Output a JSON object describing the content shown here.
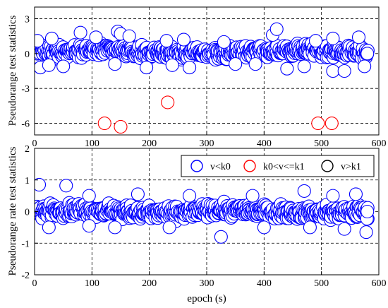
{
  "chart_data": [
    {
      "type": "scatter",
      "ylabel": "Pseudorange test statistics",
      "xlabel": "",
      "xlim": [
        0,
        600
      ],
      "ylim": [
        -7,
        4
      ],
      "xticks": [
        "0",
        "100",
        "200",
        "300",
        "400",
        "500",
        "600"
      ],
      "yticks": [
        "3",
        "0",
        "-3",
        "-6"
      ],
      "ytick_values": [
        3,
        0,
        -3,
        -6
      ],
      "grid": "dashed",
      "series": [
        {
          "key": "v<k0",
          "color": "#0000ff",
          "marker": "open-circle",
          "band": {
            "x_start": 0,
            "x_end": 580,
            "step": 2.5,
            "envelope": "-0.7 to +1.0 typical"
          },
          "outliers": [
            {
              "x": 5,
              "y": 1.1
            },
            {
              "x": 30,
              "y": 1.3
            },
            {
              "x": 80,
              "y": 1.8
            },
            {
              "x": 107,
              "y": 1.4
            },
            {
              "x": 145,
              "y": 1.9
            },
            {
              "x": 150,
              "y": 1.7
            },
            {
              "x": 165,
              "y": 1.5
            },
            {
              "x": 230,
              "y": 1.1
            },
            {
              "x": 260,
              "y": 1.2
            },
            {
              "x": 330,
              "y": 1.0
            },
            {
              "x": 415,
              "y": 1.6
            },
            {
              "x": 422,
              "y": 2.1
            },
            {
              "x": 490,
              "y": 1.1
            },
            {
              "x": 520,
              "y": 1.3
            },
            {
              "x": 565,
              "y": 1.4
            },
            {
              "x": 10,
              "y": -1.2
            },
            {
              "x": 25,
              "y": -1.0
            },
            {
              "x": 50,
              "y": -1.1
            },
            {
              "x": 140,
              "y": -0.9
            },
            {
              "x": 195,
              "y": -1.2
            },
            {
              "x": 240,
              "y": -1.0
            },
            {
              "x": 270,
              "y": -1.2
            },
            {
              "x": 350,
              "y": -0.9
            },
            {
              "x": 385,
              "y": -0.9
            },
            {
              "x": 440,
              "y": -1.3
            },
            {
              "x": 470,
              "y": -1.1
            },
            {
              "x": 520,
              "y": -1.5
            },
            {
              "x": 540,
              "y": -1.5
            },
            {
              "x": 575,
              "y": -1.1
            }
          ],
          "last_point": {
            "x": 580,
            "y": 0
          }
        },
        {
          "key": "k0<v<=k1",
          "color": "#ff0000",
          "marker": "open-circle",
          "points": [
            {
              "x": 122,
              "y": -6.0
            },
            {
              "x": 150,
              "y": -6.3
            },
            {
              "x": 232,
              "y": -4.2
            },
            {
              "x": 494,
              "y": -6.0
            },
            {
              "x": 518,
              "y": -6.0
            }
          ]
        }
      ]
    },
    {
      "type": "scatter",
      "ylabel": "Pseudorange rate test statistics",
      "xlabel": "epoch (s)",
      "xlim": [
        0,
        600
      ],
      "ylim": [
        -2,
        2
      ],
      "xticks": [
        "0",
        "100",
        "200",
        "300",
        "400",
        "500",
        "600"
      ],
      "yticks": [
        "2",
        "1",
        "0",
        "-1",
        "-2"
      ],
      "ytick_values": [
        2,
        1,
        0,
        -1,
        -2
      ],
      "grid": "dashed",
      "legend": {
        "placement": "top-right",
        "entries": [
          {
            "label": "v<k0",
            "color": "#0000ff"
          },
          {
            "label": "k0<v<=k1",
            "color": "#ff0000"
          },
          {
            "label": "v>k1",
            "color": "#000000"
          }
        ]
      },
      "series": [
        {
          "key": "v<k0",
          "color": "#0000ff",
          "marker": "open-circle",
          "band": {
            "x_start": 0,
            "x_end": 580,
            "step": 2.5,
            "envelope": "-0.35 to +0.4 typical"
          },
          "outliers": [
            {
              "x": 8,
              "y": 0.85
            },
            {
              "x": 55,
              "y": 0.82
            },
            {
              "x": 95,
              "y": 0.5
            },
            {
              "x": 180,
              "y": 0.55
            },
            {
              "x": 270,
              "y": 0.5
            },
            {
              "x": 380,
              "y": 0.5
            },
            {
              "x": 470,
              "y": 0.65
            },
            {
              "x": 520,
              "y": 0.5
            },
            {
              "x": 560,
              "y": 0.55
            },
            {
              "x": 25,
              "y": -0.5
            },
            {
              "x": 95,
              "y": -0.45
            },
            {
              "x": 140,
              "y": -0.5
            },
            {
              "x": 235,
              "y": -0.5
            },
            {
              "x": 325,
              "y": -0.8
            },
            {
              "x": 400,
              "y": -0.5
            },
            {
              "x": 480,
              "y": -0.5
            },
            {
              "x": 540,
              "y": -0.55
            },
            {
              "x": 578,
              "y": -0.65
            }
          ],
          "last_point": {
            "x": 580,
            "y": 0
          }
        }
      ]
    }
  ]
}
